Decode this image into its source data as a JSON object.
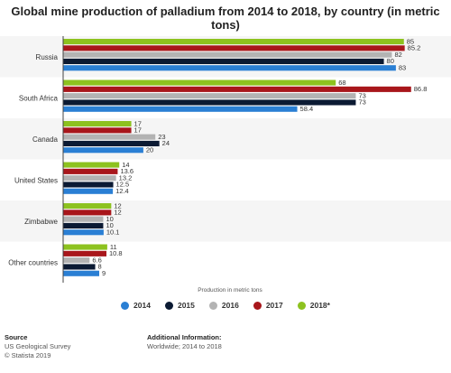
{
  "chart_data": {
    "type": "bar",
    "orientation": "horizontal",
    "title": "Global mine production of palladium from 2014 to 2018, by country (in metric tons)",
    "xlabel": "Production in metric tons",
    "ylabel": "",
    "xlim": [
      0,
      90
    ],
    "categories": [
      "Russia",
      "South Africa",
      "Canada",
      "United States",
      "Zimbabwe",
      "Other countries"
    ],
    "series_order_in_group": [
      "2018*",
      "2017",
      "2016",
      "2015",
      "2014"
    ],
    "series": [
      {
        "name": "2014",
        "color": "#2a7fd4",
        "values": [
          83,
          58.4,
          20,
          12.4,
          10.1,
          9
        ]
      },
      {
        "name": "2015",
        "color": "#0b1a33",
        "values": [
          80,
          73,
          24,
          12.5,
          10,
          8
        ]
      },
      {
        "name": "2016",
        "color": "#b3b3b3",
        "values": [
          82,
          73,
          23,
          13.2,
          10,
          6.6
        ]
      },
      {
        "name": "2017",
        "color": "#a8161b",
        "values": [
          85.2,
          86.8,
          17,
          13.6,
          12,
          10.8
        ]
      },
      {
        "name": "2018*",
        "color": "#8dc21f",
        "values": [
          85,
          68,
          17,
          14,
          12,
          11
        ]
      }
    ],
    "legend_position": "bottom",
    "grid": false
  },
  "footer": {
    "source_heading": "Source",
    "source_line1": "US Geological Survey",
    "source_line2": "© Statista 2019",
    "info_heading": "Additional Information:",
    "info_line1": "Worldwide; 2014 to 2018"
  }
}
